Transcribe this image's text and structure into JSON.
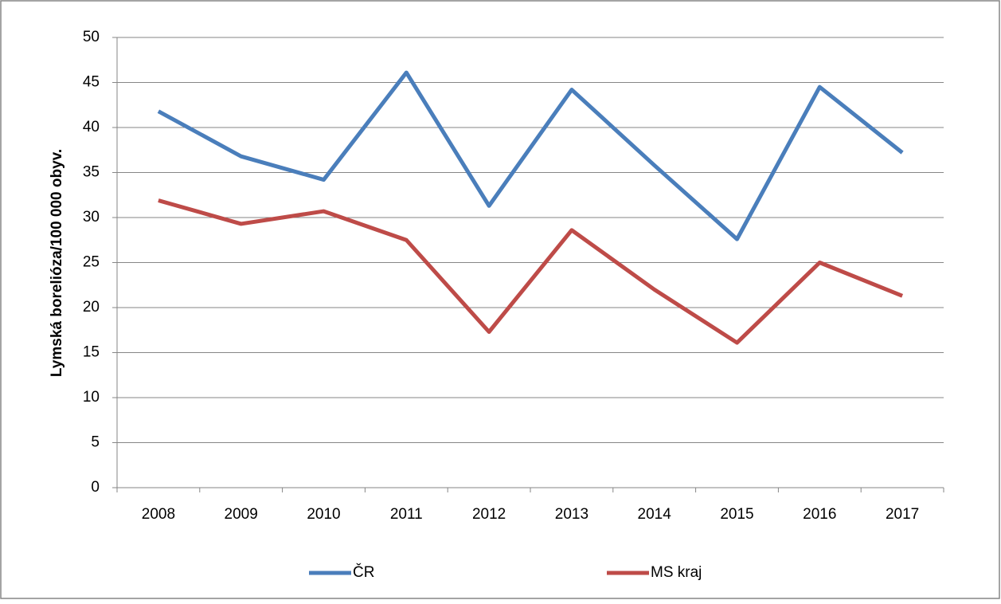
{
  "chart_data": {
    "type": "line",
    "y_label": "Lymská borelióza/100 000 obyv.",
    "categories": [
      "2008",
      "2009",
      "2010",
      "2011",
      "2012",
      "2013",
      "2014",
      "2015",
      "2016",
      "2017"
    ],
    "series": [
      {
        "name": "ČR",
        "color": "#4a7ebb",
        "values": [
          41.8,
          36.8,
          34.2,
          46.1,
          31.3,
          44.2,
          35.8,
          27.6,
          44.5,
          37.2
        ]
      },
      {
        "name": "MS kraj",
        "color": "#be4b48",
        "values": [
          31.9,
          29.3,
          30.7,
          27.5,
          17.3,
          28.6,
          22.0,
          16.1,
          25.0,
          21.3
        ]
      }
    ],
    "ylim": [
      0,
      50
    ],
    "yticks": [
      0,
      5,
      10,
      15,
      20,
      25,
      30,
      35,
      40,
      45,
      50
    ],
    "grid": true,
    "legend": "bottom"
  }
}
